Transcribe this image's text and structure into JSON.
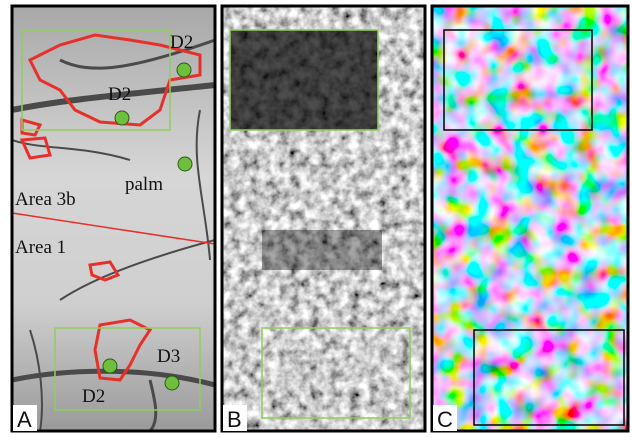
{
  "panels": [
    {
      "label": "A",
      "annotations": [
        "D2",
        "D2",
        "palm",
        "Area 3b",
        "Area 1",
        "D2",
        "D3"
      ]
    },
    {
      "label": "B"
    },
    {
      "label": "C"
    }
  ]
}
